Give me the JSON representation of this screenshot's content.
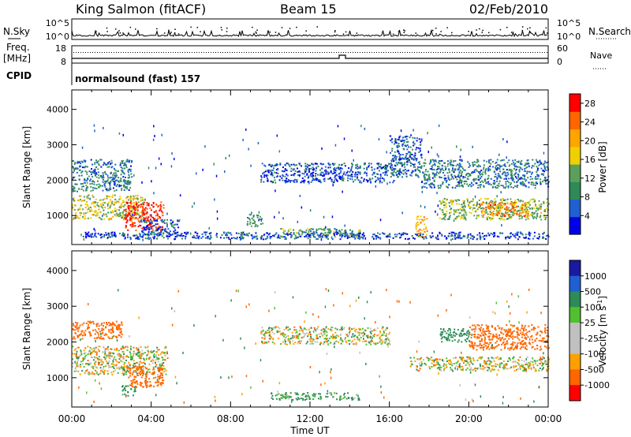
{
  "header": {
    "station": "King Salmon (fitACF)",
    "beam": "Beam 15",
    "date": "02/Feb/2010"
  },
  "status_panels": {
    "nsky_label": "N.Sky",
    "nsky_ticks": [
      "10^5",
      "10^0"
    ],
    "nsearch_label": "N.Search",
    "freq_label": "Freq.",
    "freq_unit": "[MHz]",
    "freq_ticks": [
      "18",
      "8"
    ],
    "nave_label": "Nave",
    "nave_ticks": [
      "60",
      "0"
    ],
    "cpid_label": "CPID",
    "cpid_value": "normalsound (fast) 157"
  },
  "colors": {
    "power": [
      "#0000e6",
      "#1f5fd0",
      "#2e8b57",
      "#5aa05a",
      "#f0d000",
      "#ffa500",
      "#ff6600",
      "#ff0000"
    ],
    "velocity": [
      "#ff0000",
      "#ff6600",
      "#ffa000",
      "#c0c0c0",
      "#c0c0c0",
      "#50c030",
      "#2e8b57",
      "#1f5fd0",
      "#1a1aa0"
    ]
  },
  "chart_data": [
    {
      "type": "heatmap",
      "ylabel": "Slant Range [km]",
      "y_ticks": [
        "1000",
        "2000",
        "3000",
        "4000"
      ],
      "ylim": [
        180,
        4550
      ],
      "xlim": [
        0,
        24
      ],
      "colorbar": {
        "label": "Power [dB]",
        "ticks": [
          "4",
          "8",
          "12",
          "16",
          "20",
          "24",
          "28"
        ],
        "range": [
          0,
          30
        ]
      },
      "regions": [
        {
          "t0": 0.0,
          "t1": 3.0,
          "r0": 1700,
          "r1": 2600,
          "v": 8
        },
        {
          "t0": 0.0,
          "t1": 3.6,
          "r0": 900,
          "r1": 1600,
          "v": 16
        },
        {
          "t0": 2.6,
          "t1": 4.6,
          "r0": 600,
          "r1": 1400,
          "v": 28
        },
        {
          "t0": 3.4,
          "t1": 5.4,
          "r0": 450,
          "r1": 900,
          "v": 5
        },
        {
          "t0": 8.8,
          "t1": 9.6,
          "r0": 700,
          "r1": 1050,
          "v": 10
        },
        {
          "t0": 9.5,
          "t1": 16.2,
          "r0": 1950,
          "r1": 2500,
          "v": 5
        },
        {
          "t0": 10.5,
          "t1": 14.5,
          "r0": 400,
          "r1": 650,
          "v": 12
        },
        {
          "t0": 16.0,
          "t1": 17.6,
          "r0": 2100,
          "r1": 3300,
          "v": 6
        },
        {
          "t0": 17.3,
          "t1": 17.9,
          "r0": 400,
          "r1": 1000,
          "v": 20
        },
        {
          "t0": 17.6,
          "t1": 24.0,
          "r0": 1800,
          "r1": 2600,
          "v": 8
        },
        {
          "t0": 18.5,
          "t1": 24.0,
          "r0": 900,
          "r1": 1500,
          "v": 14
        },
        {
          "t0": 20.5,
          "t1": 23.0,
          "r0": 1000,
          "r1": 1400,
          "v": 22
        },
        {
          "t0": 0.5,
          "t1": 24.0,
          "r0": 350,
          "r1": 550,
          "v": 5
        }
      ]
    },
    {
      "type": "heatmap",
      "ylabel": "Slant Range [km]",
      "y_ticks": [
        "1000",
        "2000",
        "3000",
        "4000"
      ],
      "ylim": [
        180,
        4550
      ],
      "xlim": [
        0,
        24
      ],
      "x_ticks": [
        "00:00",
        "04:00",
        "08:00",
        "12:00",
        "16:00",
        "20:00",
        "00:00"
      ],
      "xlabel": "Time UT",
      "colorbar": {
        "label": "Velocity [m s",
        "label_sup": "-1",
        "label_end": "]",
        "ticks": [
          "1000",
          "500",
          "100",
          "25",
          "-25",
          "-100",
          "-500",
          "-1000"
        ],
        "range": [
          -1000,
          1000
        ]
      },
      "regions": [
        {
          "t0": 0.0,
          "t1": 2.5,
          "r0": 2100,
          "r1": 2600,
          "v": -300
        },
        {
          "t0": 0.0,
          "t1": 4.8,
          "r0": 1100,
          "r1": 1900,
          "v": 0
        },
        {
          "t0": 2.8,
          "t1": 4.6,
          "r0": 750,
          "r1": 1350,
          "v": -250
        },
        {
          "t0": 2.5,
          "t1": 3.2,
          "r0": 500,
          "r1": 800,
          "v": 200
        },
        {
          "t0": 9.5,
          "t1": 16.0,
          "r0": 1950,
          "r1": 2450,
          "v": 0
        },
        {
          "t0": 10.0,
          "t1": 14.5,
          "r0": 400,
          "r1": 600,
          "v": 150
        },
        {
          "t0": 17.0,
          "t1": 24.0,
          "r0": 1200,
          "r1": 1600,
          "v": 0
        },
        {
          "t0": 20.0,
          "t1": 24.0,
          "r0": 1800,
          "r1": 2500,
          "v": -250
        },
        {
          "t0": 18.5,
          "t1": 20.0,
          "r0": 2000,
          "r1": 2400,
          "v": 300
        }
      ]
    }
  ]
}
